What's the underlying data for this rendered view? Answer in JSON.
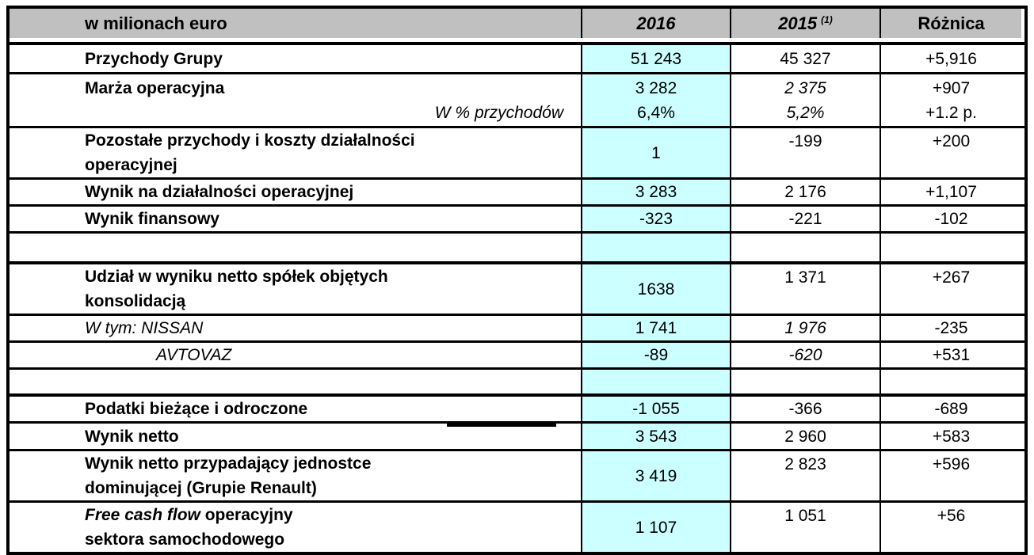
{
  "colors": {
    "header_bg": "#C0C0C0",
    "highlight_2016_bg": "#CCFFFF",
    "border": "#000000",
    "text": "#000000"
  },
  "header": {
    "col_label": "w milionach euro",
    "col_2016": "2016",
    "col_2015": "2015",
    "col_2015_footnote": "(1)",
    "col_diff": "Różnica"
  },
  "rows": [
    {
      "label": "Przychody Grupy",
      "v2016": "51 243",
      "v2015": "45 327",
      "diff": "+5,916"
    },
    {
      "label": "Marża operacyjna",
      "sublabel": "W % przychodów",
      "v2016": "3 282",
      "v2016b": "6,4%",
      "v2015": "2 375",
      "v2015b": "5,2%",
      "diff": "+907",
      "diffb": "+1.2 p."
    },
    {
      "label": "Pozostałe przychody i koszty działalności\noperacyjnej",
      "v2016": "1",
      "v2015": "-199",
      "diff": "+200"
    },
    {
      "label": "Wynik na działalności operacyjnej",
      "v2016": "3 283",
      "v2015": "2 176",
      "diff": "+1,107"
    },
    {
      "label": "Wynik finansowy",
      "v2016": "-323",
      "v2015": "-221",
      "diff": "-102"
    },
    {
      "label": "",
      "v2016": "",
      "v2015": "",
      "diff": ""
    },
    {
      "label": "Udział w wyniku netto spółek objętych\nkonsolidacją",
      "v2016": "1638",
      "v2015": "1 371",
      "diff": "+267"
    },
    {
      "label": "W tym: NISSAN",
      "v2016": "1 741",
      "v2015": "1 976",
      "diff": "-235"
    },
    {
      "label": "AVTOVAZ",
      "v2016": "-89",
      "v2015": "-620",
      "diff": "+531"
    },
    {
      "label": "",
      "v2016": "",
      "v2015": "",
      "diff": ""
    },
    {
      "label": "Podatki bieżące i odroczone",
      "v2016": "-1 055",
      "v2015": "-366",
      "diff": "-689"
    },
    {
      "label": "Wynik netto",
      "v2016": "3 543",
      "v2015": "2 960",
      "diff": "+583"
    },
    {
      "label": "Wynik netto przypadający jednostce\ndominującej (Grupie Renault)",
      "v2016": "3 419",
      "v2015": "2 823",
      "diff": "+596"
    },
    {
      "label_italic": "Free cash flow",
      "label_rest": " operacyjny",
      "label_line2": "sektora samochodowego",
      "v2016": "1 107",
      "v2015": "1 051",
      "diff": "+56"
    }
  ]
}
